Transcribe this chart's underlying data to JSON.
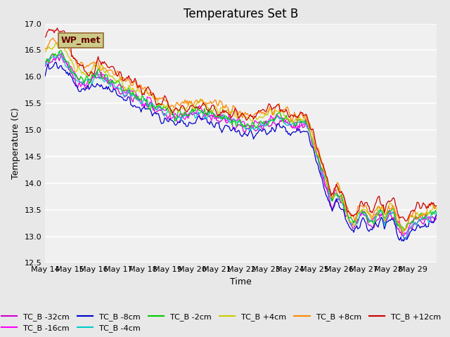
{
  "title": "Temperatures Set B",
  "xlabel": "Time",
  "ylabel": "Temperature (C)",
  "ylim": [
    12.5,
    17.0
  ],
  "x_tick_labels": [
    "May 14",
    "May 15",
    "May 16",
    "May 17",
    "May 18",
    "May 19",
    "May 20",
    "May 21",
    "May 22",
    "May 23",
    "May 24",
    "May 25",
    "May 26",
    "May 27",
    "May 28",
    "May 29"
  ],
  "series": [
    {
      "label": "TC_B -32cm",
      "color": "#cc00cc"
    },
    {
      "label": "TC_B -16cm",
      "color": "#ff00ff"
    },
    {
      "label": "TC_B -8cm",
      "color": "#0000cc"
    },
    {
      "label": "TC_B -4cm",
      "color": "#00cccc"
    },
    {
      "label": "TC_B -2cm",
      "color": "#00cc00"
    },
    {
      "label": "TC_B +4cm",
      "color": "#cccc00"
    },
    {
      "label": "TC_B +8cm",
      "color": "#ff8800"
    },
    {
      "label": "TC_B +12cm",
      "color": "#cc0000"
    }
  ],
  "wp_met_box_color": "#cccc88",
  "wp_met_text_color": "#660000",
  "background_color": "#e8e8e8",
  "plot_bg_color": "#f0f0f0",
  "grid_color": "#ffffff",
  "title_fontsize": 12,
  "label_fontsize": 9,
  "tick_fontsize": 8,
  "legend_fontsize": 8
}
